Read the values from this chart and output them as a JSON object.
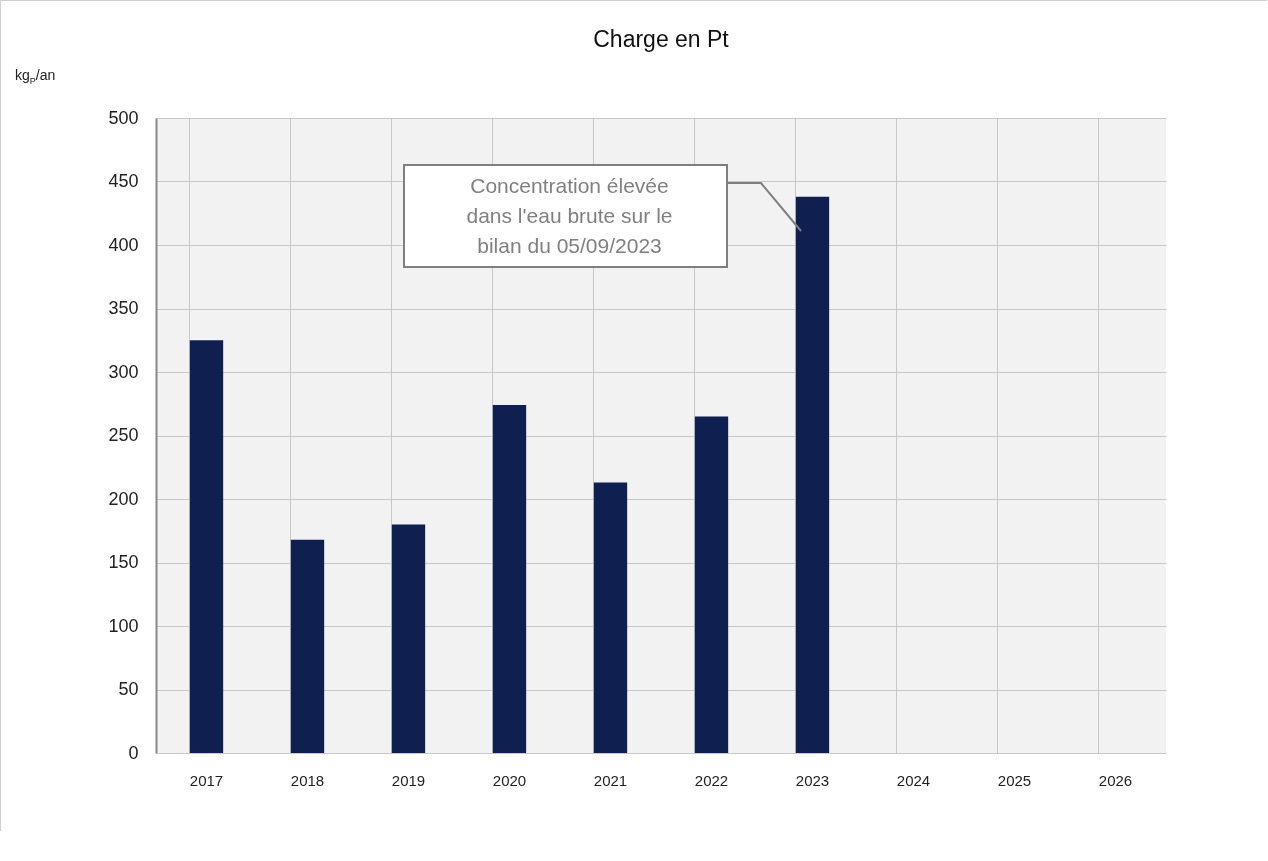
{
  "chart_data": {
    "type": "bar",
    "title": "Charge en Pt",
    "ylabel": "kg$_{P}$/an",
    "categories": [
      "2017",
      "2018",
      "2019",
      "2020",
      "2021",
      "2022",
      "2023",
      "2024",
      "2025",
      "2026"
    ],
    "values": [
      325,
      168,
      180,
      274,
      213,
      265,
      438,
      null,
      null,
      null
    ],
    "color": "#0f1f4f",
    "ylim": [
      0,
      500
    ],
    "yticks": [
      0,
      50,
      100,
      150,
      200,
      250,
      300,
      350,
      400,
      450,
      500
    ],
    "grid": true,
    "annotations": [
      "Concentration élevée dans l'eau brute sur le bilan du 05/09/2023"
    ]
  }
}
